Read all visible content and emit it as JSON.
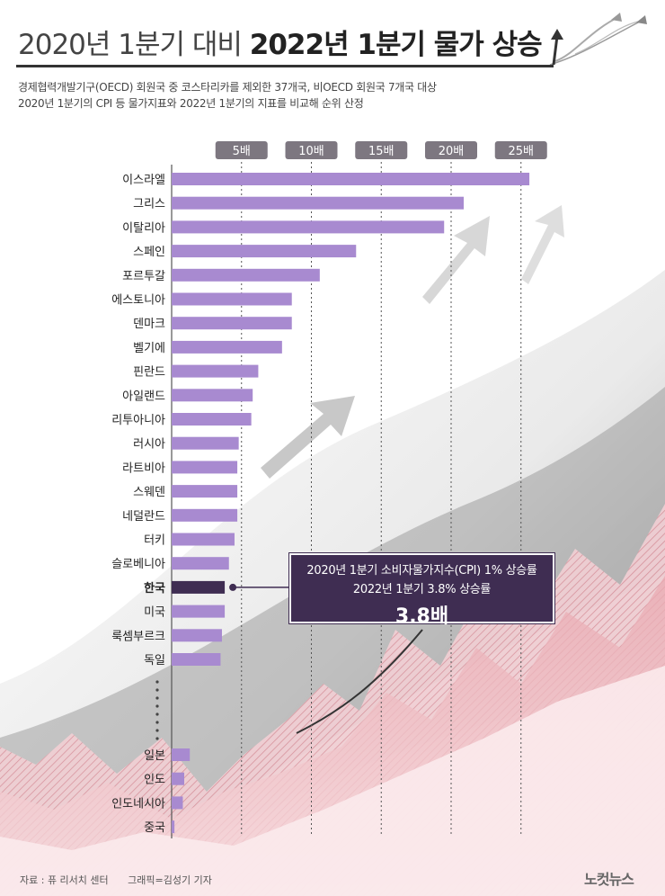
{
  "header": {
    "title_part1": "2020년 1분기 대비",
    "title_part2": "2022년 1분기 물가 상승",
    "subtitle_line1": "경제협력개발기구(OECD) 회원국 중 코스타리카를 제외한 37개국, 비OECD 회원국 7개국 대상",
    "subtitle_line2": "2020년 1분기의 CPI 등 물가지표와 2022년 1분기의 지표를 비교해 순위 산정"
  },
  "callout": {
    "line1": "2020년 1분기 소비자물가지수(CPI) 1% 상승률",
    "line2": "2022년 1분기 3.8% 상승률",
    "value": "3.8배"
  },
  "footer": {
    "source": "자료 : 퓨 리서치 센터",
    "credit": "그래픽=김성기 기자",
    "logo": "노컷뉴스"
  },
  "colors": {
    "bar": "#a88ad0",
    "highlight_bar": "#3f2d52",
    "tick_badge": "#7d7780"
  },
  "chart_data": {
    "type": "bar",
    "orientation": "horizontal",
    "title": "",
    "xlabel": "",
    "ylabel": "",
    "xlim": [
      0,
      26
    ],
    "ticks": [
      5,
      10,
      15,
      20,
      25
    ],
    "tick_labels": [
      "5배",
      "10배",
      "15배",
      "20배",
      "25배"
    ],
    "categories": [
      "이스라엘",
      "그리스",
      "이탈리아",
      "스페인",
      "포르투갈",
      "에스토니아",
      "덴마크",
      "벨기에",
      "핀란드",
      "아일랜드",
      "리투아니아",
      "러시아",
      "라트비아",
      "스웨덴",
      "네덜란드",
      "터키",
      "슬로베니아",
      "한국",
      "미국",
      "룩셈부르크",
      "독일"
    ],
    "values": [
      25.6,
      20.9,
      19.5,
      13.2,
      10.6,
      8.6,
      8.6,
      7.9,
      6.2,
      5.8,
      5.7,
      4.8,
      4.7,
      4.7,
      4.7,
      4.5,
      4.1,
      3.8,
      3.8,
      3.6,
      3.5
    ],
    "tail_categories": [
      "일본",
      "인도",
      "인도네시아",
      "중국"
    ],
    "tail_values": [
      1.3,
      0.9,
      0.8,
      0.2
    ],
    "highlight": "한국",
    "grid": true
  }
}
